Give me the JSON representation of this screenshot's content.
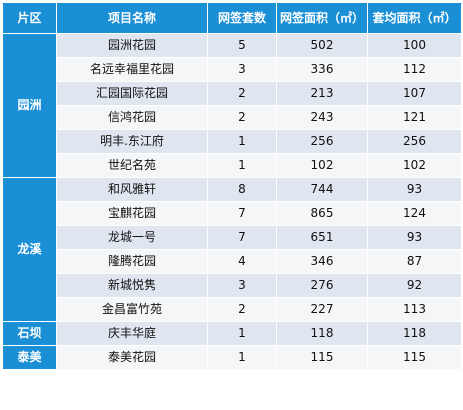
{
  "headers": [
    "片区",
    "项目名称",
    "网签套数",
    "网签面积（㎡）",
    "套均面积（㎡）"
  ],
  "groups": [
    {
      "region": "园洲",
      "rows": [
        [
          "园洲花园",
          "5",
          "502",
          "100"
        ],
        [
          "名远幸福里花园",
          "3",
          "336",
          "112"
        ],
        [
          "汇园国际花园",
          "2",
          "213",
          "107"
        ],
        [
          "信鸿花园",
          "2",
          "243",
          "121"
        ],
        [
          "明丰.东江府",
          "1",
          "256",
          "256"
        ],
        [
          "世纪名苑",
          "1",
          "102",
          "102"
        ]
      ]
    },
    {
      "region": "龙溪",
      "rows": [
        [
          "和风雅轩",
          "8",
          "744",
          "93"
        ],
        [
          "宝麒花园",
          "7",
          "865",
          "124"
        ],
        [
          "龙城一号",
          "7",
          "651",
          "93"
        ],
        [
          "隆腾花园",
          "4",
          "346",
          "87"
        ],
        [
          "新城悦隽",
          "3",
          "276",
          "92"
        ],
        [
          "金昌富竹苑",
          "2",
          "227",
          "113"
        ]
      ]
    },
    {
      "region": "石坝",
      "rows": [
        [
          "庆丰华庭",
          "1",
          "118",
          "118"
        ]
      ]
    },
    {
      "region": "泰美",
      "rows": [
        [
          "泰美花园",
          "1",
          "115",
          "115"
        ]
      ]
    }
  ],
  "colors": {
    "header_bg": "#1a8fd6",
    "row_odd_bg": "#dfe6ef",
    "row_even_bg": "#f4f6f8"
  }
}
